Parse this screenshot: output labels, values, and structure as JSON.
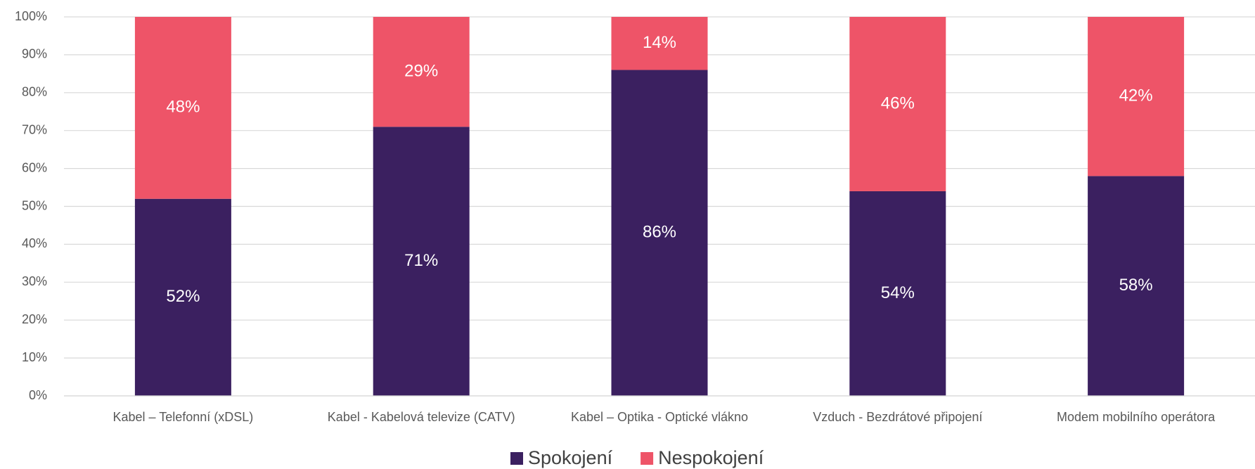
{
  "chart_data": {
    "type": "stacked_bar",
    "categories": [
      "Kabel – Telefonní (xDSL)",
      "Kabel - Kabelová televize (CATV)",
      "Kabel – Optika - Optické vlákno",
      "Vzduch - Bezdrátové připojení",
      "Modem mobilního operátora"
    ],
    "series": [
      {
        "name": "Spokojení",
        "color": "#3b2060",
        "values": [
          52,
          71,
          86,
          54,
          58
        ],
        "value_labels": [
          "52%",
          "71%",
          "86%",
          "54%",
          "58%"
        ]
      },
      {
        "name": "Nespokojení",
        "color": "#ee5468",
        "values": [
          48,
          29,
          14,
          46,
          42
        ],
        "value_labels": [
          "48%",
          "29%",
          "14%",
          "46%",
          "42%"
        ]
      }
    ],
    "ylim": [
      0,
      100
    ],
    "yticks": [
      {
        "value": 0,
        "label": "0%"
      },
      {
        "value": 10,
        "label": "10%"
      },
      {
        "value": 20,
        "label": "20%"
      },
      {
        "value": 30,
        "label": "30%"
      },
      {
        "value": 40,
        "label": "40%"
      },
      {
        "value": 50,
        "label": "50%"
      },
      {
        "value": 60,
        "label": "60%"
      },
      {
        "value": 70,
        "label": "70%"
      },
      {
        "value": 80,
        "label": "80%"
      },
      {
        "value": 90,
        "label": "90%"
      },
      {
        "value": 100,
        "label": "100%"
      }
    ],
    "grid": true,
    "legend": "bottom"
  }
}
